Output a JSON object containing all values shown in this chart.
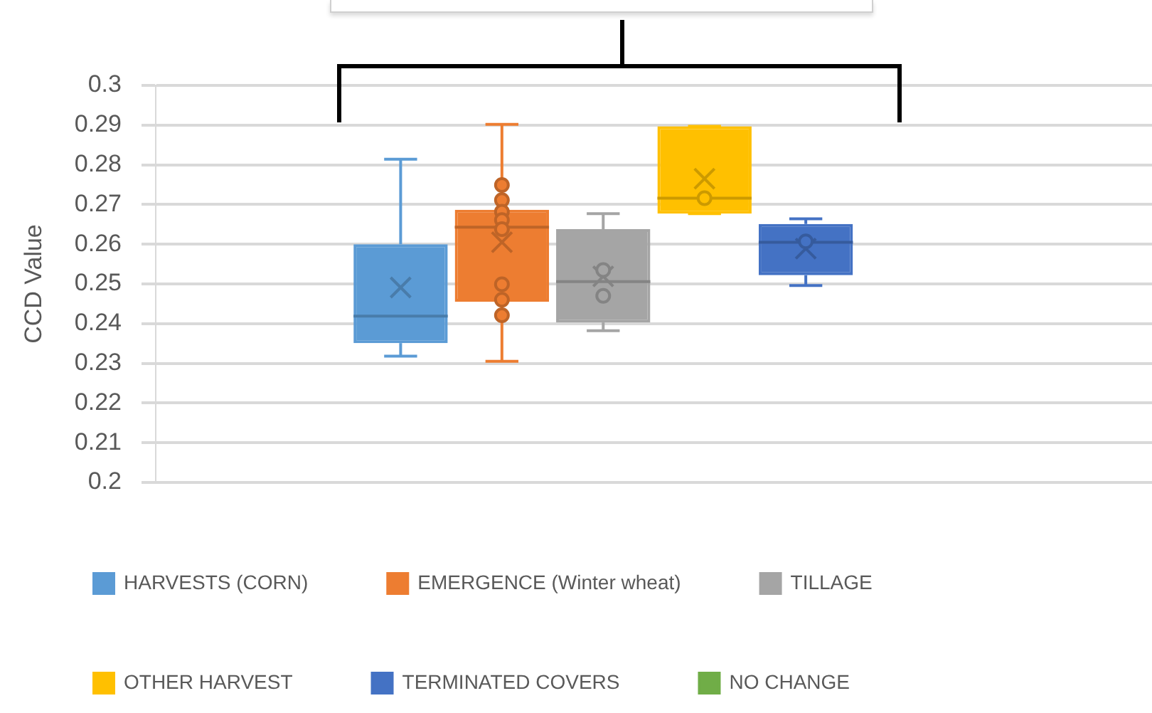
{
  "chart_data": {
    "type": "box",
    "ylabel": "CCD Value",
    "categories": [
      null
    ],
    "ylim": [
      0.2,
      0.3
    ],
    "yticks": [
      0.2,
      0.21,
      0.22,
      0.23,
      0.24,
      0.25,
      0.26,
      0.27,
      0.28,
      0.29,
      0.3
    ],
    "grid": "y",
    "legend": "bottom",
    "marker": "circle",
    "series": [
      {
        "name": "HARVESTS (CORN)",
        "color": "#5b9bd5",
        "boxes": [
          {
            "low": 0.2318,
            "q1": 0.2351,
            "median": 0.2419,
            "q3": 0.26,
            "high": 0.2814,
            "mean": 0.2491
          }
        ]
      },
      {
        "name": "EMERGENCE (Winter wheat)",
        "color": "#ed7d31",
        "boxes": [
          {
            "low": 0.2305,
            "q1": 0.2455,
            "median": 0.2643,
            "q3": 0.2687,
            "high": 0.2902,
            "mean": 0.2605,
            "outliers": [
              0.2749,
              0.2711,
              0.2682,
              0.2661,
              0.2638,
              0.2499,
              0.246,
              0.2421
            ]
          }
        ]
      },
      {
        "name": "TILLAGE",
        "color": "#a5a5a5",
        "boxes": [
          {
            "low": 0.2382,
            "q1": 0.2403,
            "median": 0.2506,
            "q3": 0.2638,
            "high": 0.2677,
            "mean": 0.2519,
            "outliers": [
              0.2535,
              0.247
            ]
          }
        ]
      },
      {
        "name": "OTHER HARVEST",
        "color": "#ffc000",
        "boxes": [
          {
            "low": 0.2677,
            "q1": 0.2677,
            "median": 0.2716,
            "q3": 0.2897,
            "high": 0.2897,
            "mean": 0.2765,
            "outliers": [
              0.2716
            ]
          }
        ]
      },
      {
        "name": "TERMINATED COVERS",
        "color": "#4472c4",
        "boxes": [
          {
            "low": 0.2496,
            "q1": 0.2522,
            "median": 0.2605,
            "q3": 0.2651,
            "high": 0.2664,
            "mean": 0.2589,
            "outliers": [
              0.2607
            ]
          }
        ]
      },
      {
        "name": "NO CHANGE",
        "color": "#70ad47",
        "boxes": [
          null
        ]
      }
    ]
  }
}
